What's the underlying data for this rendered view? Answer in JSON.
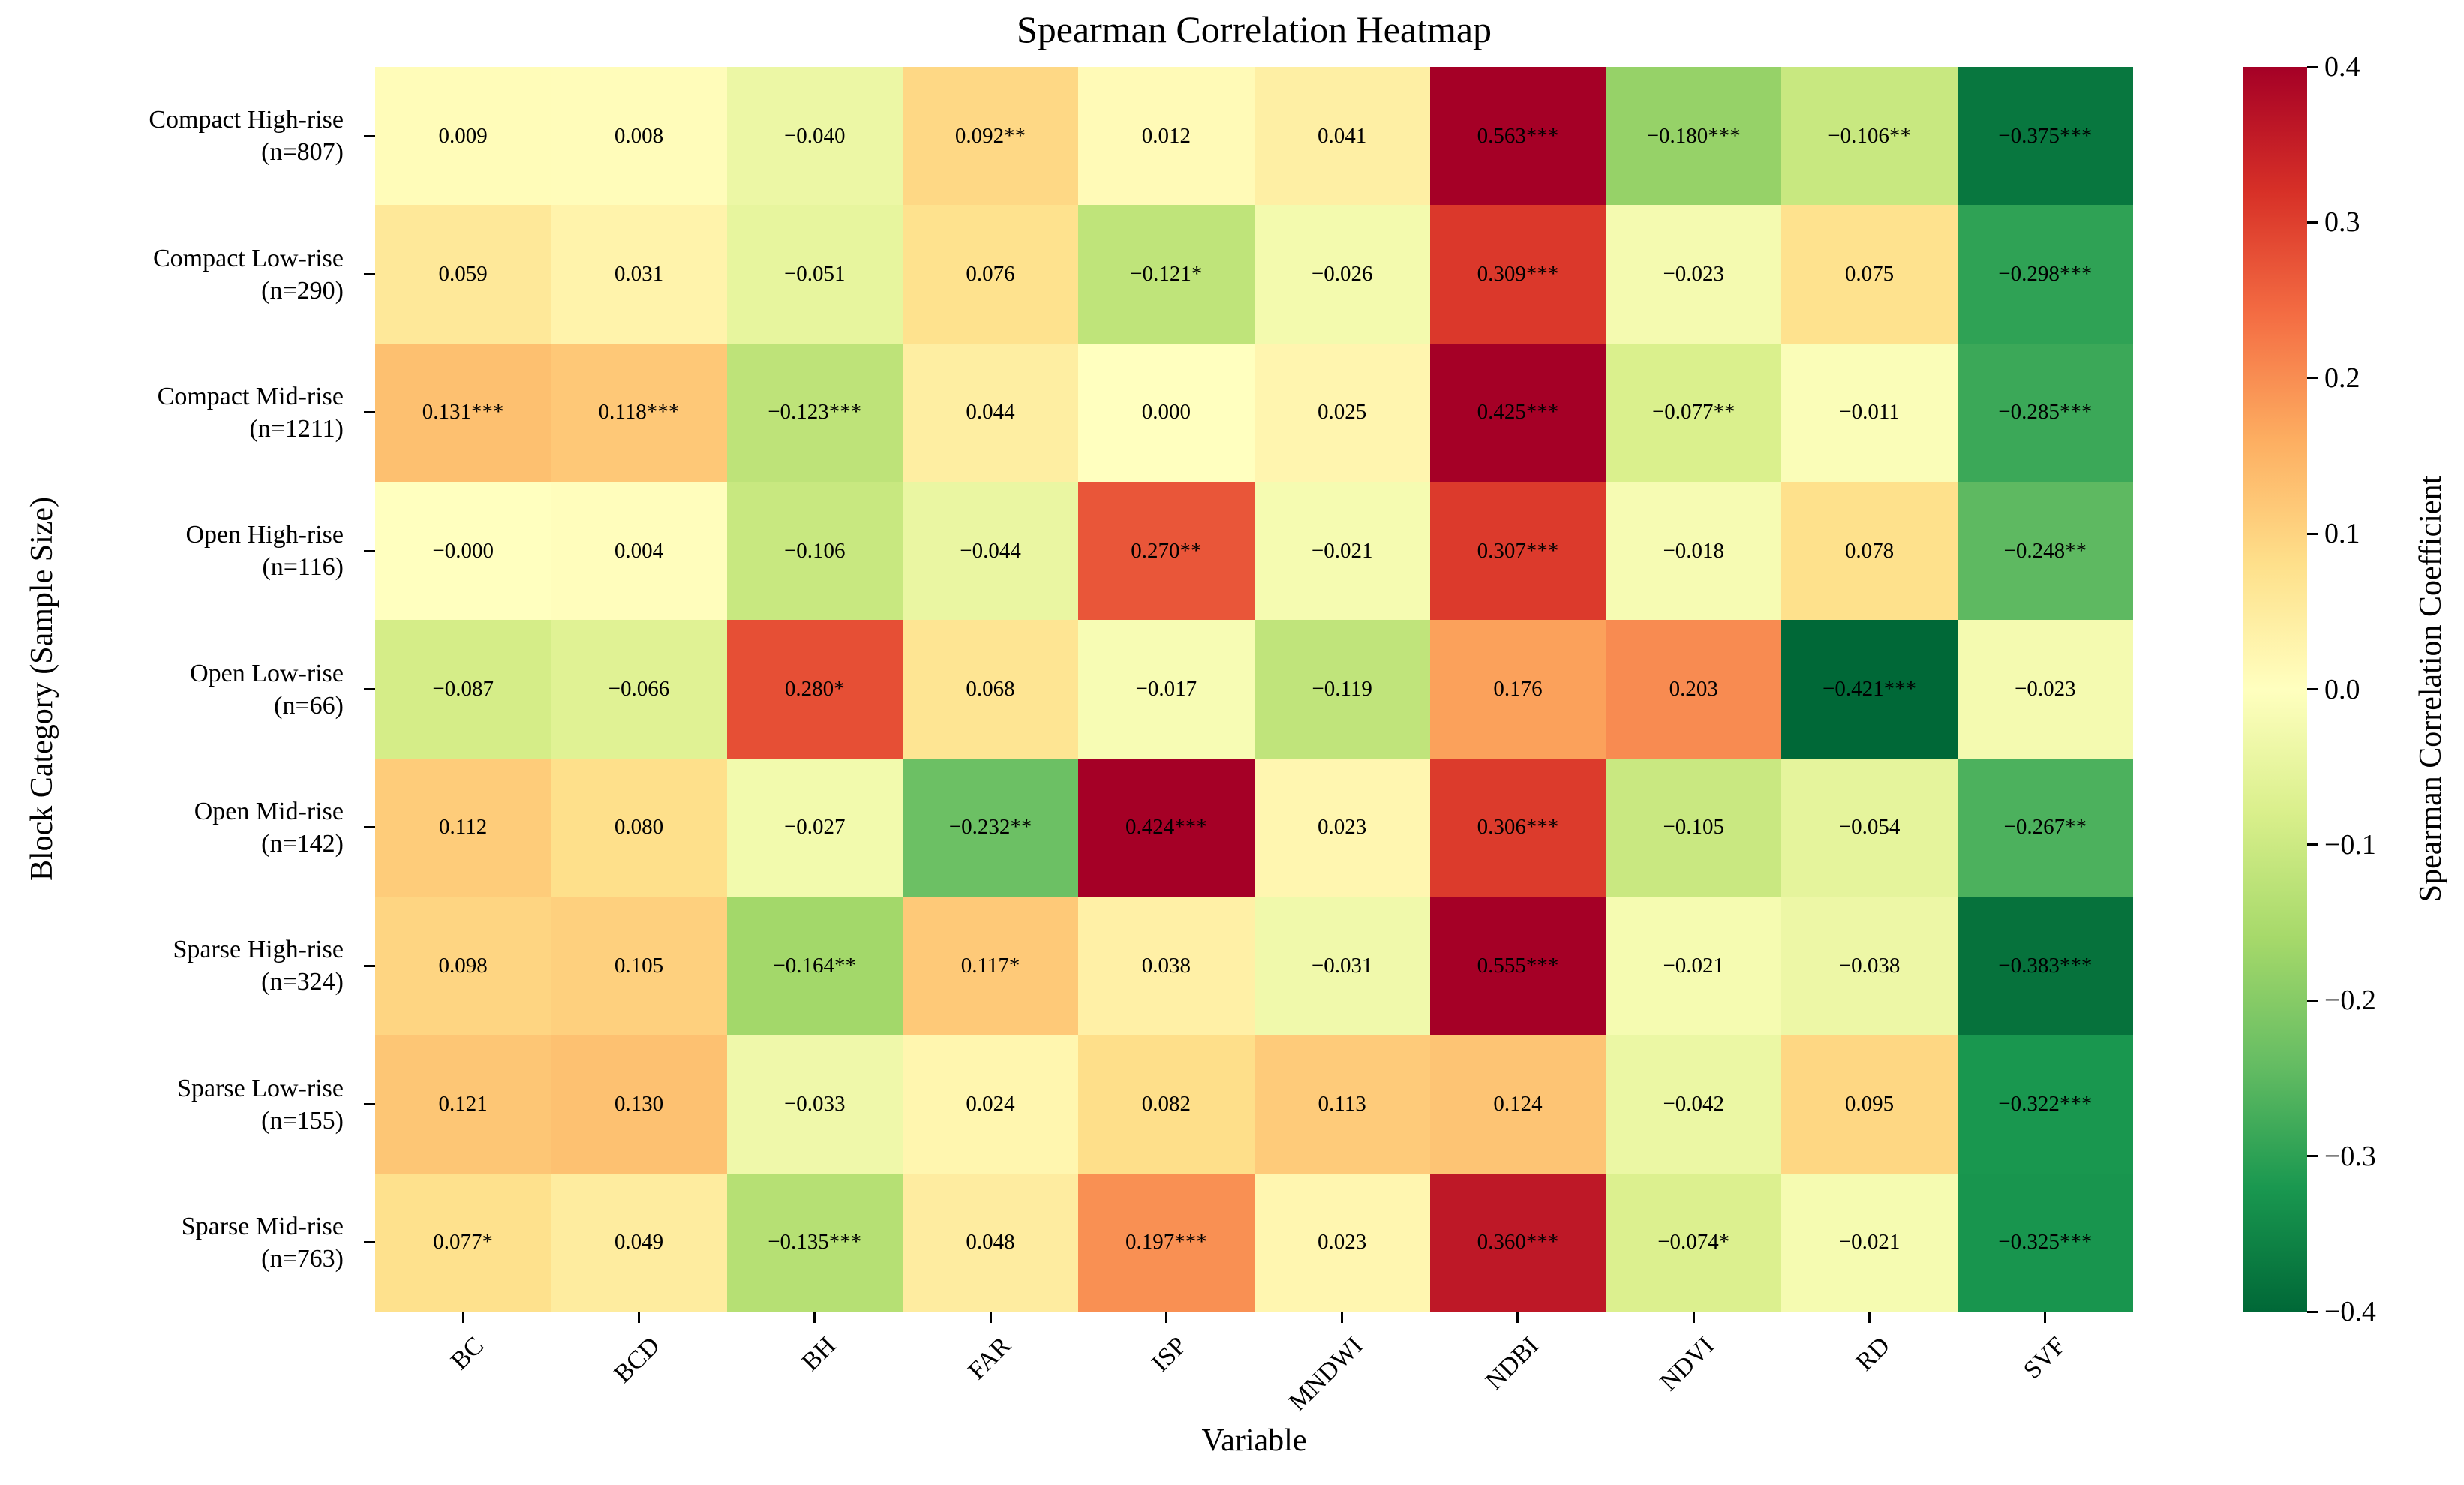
{
  "title": "Spearman Correlation Heatmap",
  "axes": {
    "xlabel": "Variable",
    "ylabel": "Block Category (Sample Size)"
  },
  "colorbar": {
    "label": "Spearman Correlation Coefficient",
    "tick_labels": [
      "0.4",
      "0.3",
      "0.2",
      "0.1",
      "0.0",
      "−0.1",
      "−0.2",
      "−0.3",
      "−0.4"
    ],
    "vmin": -0.4,
    "vmax": 0.4,
    "colormap_name": "RdYlGn_r",
    "anchors_low_to_high": [
      "#006837",
      "#1a9850",
      "#66bd63",
      "#a6d96a",
      "#d9ef8b",
      "#ffffbf",
      "#fee08b",
      "#fdae61",
      "#f46d43",
      "#d73027",
      "#a50026"
    ]
  },
  "chart_data": {
    "type": "heatmap",
    "columns": [
      "BC",
      "BCD",
      "BH",
      "FAR",
      "ISP",
      "MNDWI",
      "NDBI",
      "NDVI",
      "RD",
      "SVF"
    ],
    "rows": [
      {
        "category": "Compact High-rise",
        "sample": "(n=807)"
      },
      {
        "category": "Compact Low-rise",
        "sample": "(n=290)"
      },
      {
        "category": "Compact Mid-rise",
        "sample": "(n=1211)"
      },
      {
        "category": "Open High-rise",
        "sample": "(n=116)"
      },
      {
        "category": "Open Low-rise",
        "sample": "(n=66)"
      },
      {
        "category": "Open Mid-rise",
        "sample": "(n=142)"
      },
      {
        "category": "Sparse High-rise",
        "sample": "(n=324)"
      },
      {
        "category": "Sparse Low-rise",
        "sample": "(n=155)"
      },
      {
        "category": "Sparse Mid-rise",
        "sample": "(n=763)"
      }
    ],
    "values": [
      [
        0.009,
        0.008,
        -0.04,
        0.092,
        0.012,
        0.041,
        0.563,
        -0.18,
        -0.106,
        -0.375
      ],
      [
        0.059,
        0.031,
        -0.051,
        0.076,
        -0.121,
        -0.026,
        0.309,
        -0.023,
        0.075,
        -0.298
      ],
      [
        0.131,
        0.118,
        -0.123,
        0.044,
        0.0,
        0.025,
        0.425,
        -0.077,
        -0.011,
        -0.285
      ],
      [
        -0.0,
        0.004,
        -0.106,
        -0.044,
        0.27,
        -0.021,
        0.307,
        -0.018,
        0.078,
        -0.248
      ],
      [
        -0.087,
        -0.066,
        0.28,
        0.068,
        -0.017,
        -0.119,
        0.176,
        0.203,
        -0.421,
        -0.023
      ],
      [
        0.112,
        0.08,
        -0.027,
        -0.232,
        0.424,
        0.023,
        0.306,
        -0.105,
        -0.054,
        -0.267
      ],
      [
        0.098,
        0.105,
        -0.164,
        0.117,
        0.038,
        -0.031,
        0.555,
        -0.021,
        -0.038,
        -0.383
      ],
      [
        0.121,
        0.13,
        -0.033,
        0.024,
        0.082,
        0.113,
        0.124,
        -0.042,
        0.095,
        -0.322
      ],
      [
        0.077,
        0.049,
        -0.135,
        0.048,
        0.197,
        0.023,
        0.36,
        -0.074,
        -0.021,
        -0.325
      ]
    ],
    "cell_labels": [
      [
        "0.009",
        "0.008",
        "−0.040",
        "0.092**",
        "0.012",
        "0.041",
        "0.563***",
        "−0.180***",
        "−0.106**",
        "−0.375***"
      ],
      [
        "0.059",
        "0.031",
        "−0.051",
        "0.076",
        "−0.121*",
        "−0.026",
        "0.309***",
        "−0.023",
        "0.075",
        "−0.298***"
      ],
      [
        "0.131***",
        "0.118***",
        "−0.123***",
        "0.044",
        "0.000",
        "0.025",
        "0.425***",
        "−0.077**",
        "−0.011",
        "−0.285***"
      ],
      [
        "−0.000",
        "0.004",
        "−0.106",
        "−0.044",
        "0.270**",
        "−0.021",
        "0.307***",
        "−0.018",
        "0.078",
        "−0.248**"
      ],
      [
        "−0.087",
        "−0.066",
        "0.280*",
        "0.068",
        "−0.017",
        "−0.119",
        "0.176",
        "0.203",
        "−0.421***",
        "−0.023"
      ],
      [
        "0.112",
        "0.080",
        "−0.027",
        "−0.232**",
        "0.424***",
        "0.023",
        "0.306***",
        "−0.105",
        "−0.054",
        "−0.267**"
      ],
      [
        "0.098",
        "0.105",
        "−0.164**",
        "0.117*",
        "0.038",
        "−0.031",
        "0.555***",
        "−0.021",
        "−0.038",
        "−0.383***"
      ],
      [
        "0.121",
        "0.130",
        "−0.033",
        "0.024",
        "0.082",
        "0.113",
        "0.124",
        "−0.042",
        "0.095",
        "−0.322***"
      ],
      [
        "0.077*",
        "0.049",
        "−0.135***",
        "0.048",
        "0.197***",
        "0.023",
        "0.360***",
        "−0.074*",
        "−0.021",
        "−0.325***"
      ]
    ]
  }
}
